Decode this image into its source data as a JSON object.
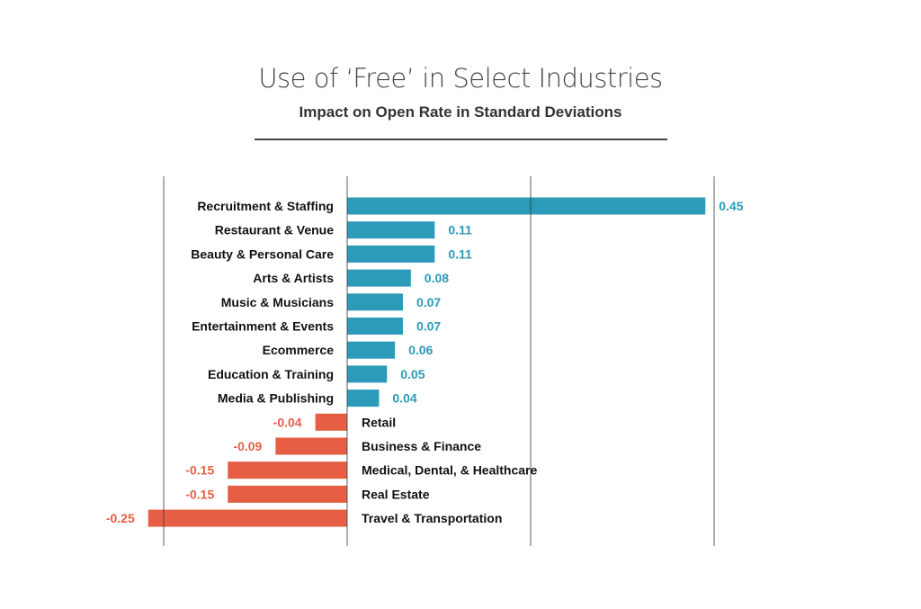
{
  "chart_data": {
    "type": "bar",
    "orientation": "horizontal",
    "title": "Use of ‘Free’ in Select Industries",
    "subtitle": "Impact on Open Rate in Standard Deviations",
    "xlabel": "",
    "ylabel": "",
    "grid": true,
    "colors": {
      "positive": "#2b9bb9",
      "negative": "#e65f45"
    },
    "categories": [
      "Recruitment & Staffing",
      "Restaurant & Venue",
      "Beauty & Personal Care",
      "Arts & Artists",
      "Music & Musicians",
      "Entertainment & Events",
      "Ecommerce",
      "Education & Training",
      "Media & Publishing",
      "Retail",
      "Business & Finance",
      "Medical, Dental, & Healthcare",
      "Real Estate",
      "Travel & Transportation"
    ],
    "values": [
      0.45,
      0.11,
      0.11,
      0.08,
      0.07,
      0.07,
      0.06,
      0.05,
      0.04,
      -0.04,
      -0.09,
      -0.15,
      -0.15,
      -0.25
    ],
    "labels": [
      "0.45",
      "0.11",
      "0.11",
      "0.08",
      "0.07",
      "0.07",
      "0.06",
      "0.05",
      "0.04",
      "-0.04",
      "-0.09",
      "-0.15",
      "-0.15",
      "-0.25"
    ]
  }
}
